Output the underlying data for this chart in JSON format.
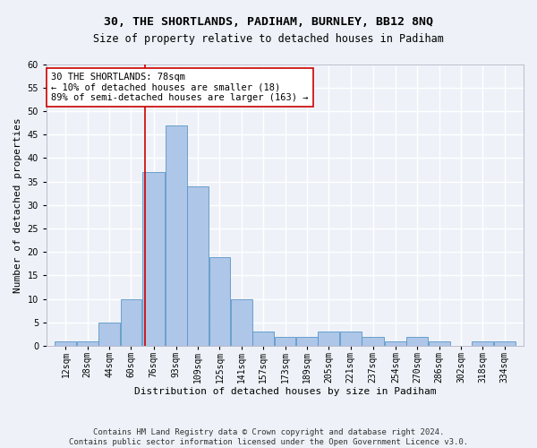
{
  "title": "30, THE SHORTLANDS, PADIHAM, BURNLEY, BB12 8NQ",
  "subtitle": "Size of property relative to detached houses in Padiham",
  "xlabel": "Distribution of detached houses by size in Padiham",
  "ylabel": "Number of detached properties",
  "footer_line1": "Contains HM Land Registry data © Crown copyright and database right 2024.",
  "footer_line2": "Contains public sector information licensed under the Open Government Licence v3.0.",
  "bin_labels": [
    "12sqm",
    "28sqm",
    "44sqm",
    "60sqm",
    "76sqm",
    "93sqm",
    "109sqm",
    "125sqm",
    "141sqm",
    "157sqm",
    "173sqm",
    "189sqm",
    "205sqm",
    "221sqm",
    "237sqm",
    "254sqm",
    "270sqm",
    "286sqm",
    "302sqm",
    "318sqm",
    "334sqm"
  ],
  "bin_edges": [
    12,
    28,
    44,
    60,
    76,
    93,
    109,
    125,
    141,
    157,
    173,
    189,
    205,
    221,
    237,
    254,
    270,
    286,
    302,
    318,
    334,
    350
  ],
  "counts": [
    1,
    1,
    5,
    10,
    37,
    47,
    34,
    19,
    10,
    3,
    2,
    2,
    3,
    3,
    2,
    1,
    2,
    1,
    0,
    1,
    1
  ],
  "bar_color": "#aec6e8",
  "bar_edge_color": "#5a96c8",
  "property_size": 78,
  "vline_color": "#cc0000",
  "annotation_line1": "30 THE SHORTLANDS: 78sqm",
  "annotation_line2": "← 10% of detached houses are smaller (18)",
  "annotation_line3": "89% of semi-detached houses are larger (163) →",
  "annotation_box_color": "#ffffff",
  "annotation_box_edge_color": "#cc0000",
  "ylim": [
    0,
    60
  ],
  "background_color": "#eef2f8",
  "grid_color": "#ffffff",
  "title_fontsize": 9.5,
  "subtitle_fontsize": 8.5,
  "axis_label_fontsize": 8,
  "tick_fontsize": 7,
  "footer_fontsize": 6.5,
  "annotation_fontsize": 7.5
}
